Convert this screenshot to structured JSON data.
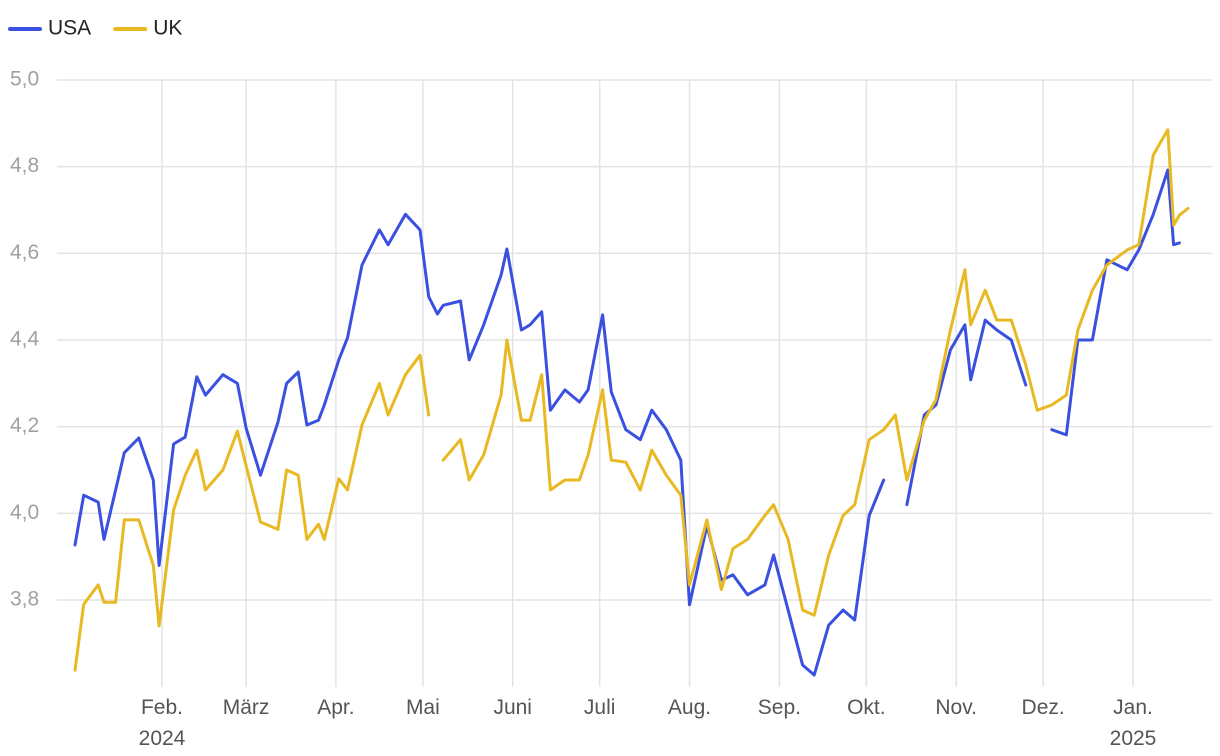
{
  "chart_data": {
    "type": "line",
    "legend": "top-left",
    "grid": true,
    "ylim": [
      3.6,
      5.0
    ],
    "yticks": [
      {
        "value": 3.8,
        "label": "3,8"
      },
      {
        "value": 4.0,
        "label": "4,0"
      },
      {
        "value": 4.2,
        "label": "4,2"
      },
      {
        "value": 4.4,
        "label": "4,4"
      },
      {
        "value": 4.6,
        "label": "4,6"
      },
      {
        "value": 4.8,
        "label": "4,8"
      },
      {
        "value": 5.0,
        "label": "5,0"
      }
    ],
    "xticks": [
      {
        "value": "2024-02-01",
        "label": "Feb.\n2024"
      },
      {
        "value": "2024-03-01",
        "label": "März"
      },
      {
        "value": "2024-04-01",
        "label": "Apr."
      },
      {
        "value": "2024-05-01",
        "label": "Mai"
      },
      {
        "value": "2024-06-01",
        "label": "Juni"
      },
      {
        "value": "2024-07-01",
        "label": "Juli"
      },
      {
        "value": "2024-08-01",
        "label": "Aug."
      },
      {
        "value": "2024-09-01",
        "label": "Sep."
      },
      {
        "value": "2024-10-01",
        "label": "Okt."
      },
      {
        "value": "2024-11-01",
        "label": "Nov."
      },
      {
        "value": "2024-12-01",
        "label": "Dez."
      },
      {
        "value": "2025-01-01",
        "label": "Jan.\n2025"
      }
    ],
    "x": [
      "2024-01-02",
      "2024-01-05",
      "2024-01-10",
      "2024-01-12",
      "2024-01-16",
      "2024-01-19",
      "2024-01-24",
      "2024-01-29",
      "2024-01-31",
      "2024-02-05",
      "2024-02-09",
      "2024-02-13",
      "2024-02-16",
      "2024-02-22",
      "2024-02-27",
      "2024-03-01",
      "2024-03-06",
      "2024-03-12",
      "2024-03-15",
      "2024-03-19",
      "2024-03-22",
      "2024-03-26",
      "2024-03-28",
      "2024-04-02",
      "2024-04-05",
      "2024-04-10",
      "2024-04-16",
      "2024-04-19",
      "2024-04-25",
      "2024-04-30",
      "2024-05-03",
      "2024-05-06",
      "2024-05-08",
      "2024-05-14",
      "2024-05-17",
      "2024-05-22",
      "2024-05-28",
      "2024-05-30",
      "2024-06-04",
      "2024-06-07",
      "2024-06-11",
      "2024-06-14",
      "2024-06-19",
      "2024-06-24",
      "2024-06-27",
      "2024-07-02",
      "2024-07-05",
      "2024-07-10",
      "2024-07-15",
      "2024-07-19",
      "2024-07-24",
      "2024-07-29",
      "2024-08-01",
      "2024-08-07",
      "2024-08-12",
      "2024-08-16",
      "2024-08-21",
      "2024-08-27",
      "2024-08-30",
      "2024-09-04",
      "2024-09-09",
      "2024-09-13",
      "2024-09-18",
      "2024-09-23",
      "2024-09-27",
      "2024-10-02",
      "2024-10-07",
      "2024-10-11",
      "2024-10-15",
      "2024-10-21",
      "2024-10-25",
      "2024-10-30",
      "2024-11-04",
      "2024-11-06",
      "2024-11-11",
      "2024-11-15",
      "2024-11-20",
      "2024-11-25",
      "2024-11-29",
      "2024-12-04",
      "2024-12-09",
      "2024-12-13",
      "2024-12-18",
      "2024-12-23",
      "2024-12-30",
      "2025-01-03",
      "2025-01-08",
      "2025-01-13",
      "2025-01-15",
      "2025-01-17",
      "2025-01-20"
    ],
    "series": [
      {
        "name": "USA",
        "color": "#3a50e0",
        "values": [
          3.927,
          4.042,
          4.026,
          3.94,
          4.054,
          4.14,
          4.174,
          4.077,
          3.88,
          4.16,
          4.176,
          4.315,
          4.273,
          4.32,
          4.3,
          4.197,
          4.088,
          4.21,
          4.3,
          4.326,
          4.204,
          4.215,
          4.25,
          4.354,
          4.405,
          4.573,
          4.654,
          4.62,
          4.69,
          4.654,
          4.5,
          4.46,
          4.48,
          4.49,
          4.354,
          4.435,
          4.55,
          4.61,
          4.423,
          4.435,
          4.465,
          4.238,
          4.285,
          4.257,
          4.285,
          4.458,
          4.28,
          4.193,
          4.17,
          4.238,
          4.193,
          4.123,
          3.789,
          3.972,
          3.846,
          3.858,
          3.812,
          3.835,
          3.904,
          3.777,
          3.65,
          3.627,
          3.742,
          3.777,
          3.754,
          3.995,
          4.077,
          null,
          4.02,
          4.227,
          4.25,
          4.377,
          4.435,
          4.308,
          4.446,
          4.423,
          4.4,
          4.296,
          null,
          4.193,
          4.181,
          4.4,
          4.4,
          4.585,
          4.562,
          4.608,
          4.69,
          4.792,
          4.62,
          4.624,
          null
        ]
      },
      {
        "name": "UK",
        "color": "#e8b923",
        "values": [
          3.638,
          3.79,
          3.835,
          3.795,
          3.795,
          3.985,
          3.985,
          3.88,
          3.74,
          4.008,
          4.088,
          4.146,
          4.054,
          4.1,
          4.19,
          4.11,
          3.98,
          3.963,
          4.1,
          4.088,
          3.94,
          3.975,
          3.94,
          4.08,
          4.054,
          4.204,
          4.3,
          4.227,
          4.32,
          4.365,
          4.227,
          null,
          4.123,
          4.17,
          4.077,
          4.135,
          4.273,
          4.4,
          4.215,
          4.215,
          4.32,
          4.054,
          4.077,
          4.077,
          4.135,
          4.285,
          4.123,
          4.118,
          4.054,
          4.146,
          4.088,
          4.042,
          3.835,
          3.985,
          3.824,
          3.919,
          3.94,
          3.995,
          4.02,
          3.94,
          3.777,
          3.765,
          3.904,
          3.995,
          4.02,
          4.17,
          4.193,
          4.227,
          4.077,
          4.215,
          4.262,
          4.423,
          4.562,
          4.435,
          4.515,
          4.446,
          4.446,
          4.342,
          4.238,
          4.25,
          4.273,
          4.423,
          4.515,
          4.573,
          4.608,
          4.62,
          4.827,
          4.885,
          4.665,
          4.688,
          4.704
        ]
      }
    ]
  }
}
